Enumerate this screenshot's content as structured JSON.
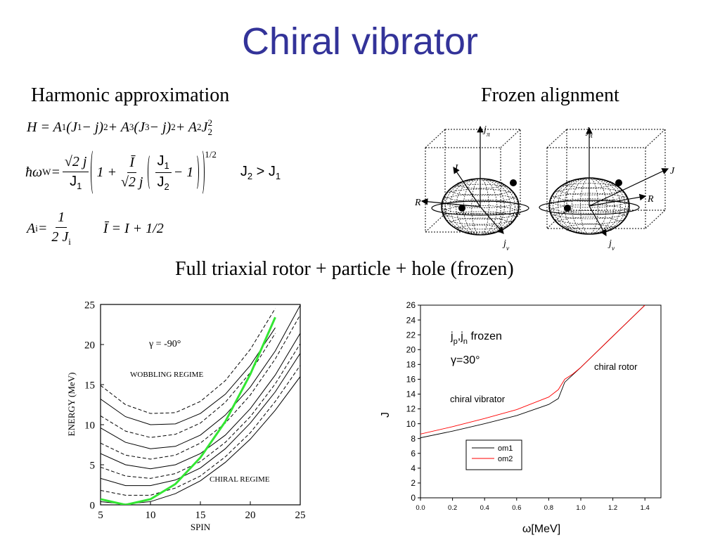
{
  "slide": {
    "title": "Chiral vibrator",
    "left_heading": "Harmonic approximation",
    "right_heading": "Frozen alignment",
    "subheading": "Full triaxial rotor + particle + hole (frozen)",
    "equations": [
      [
        "H = A",
        "1",
        "(J",
        "1",
        " − j)",
        "2",
        " + A",
        "3",
        "(J",
        "3",
        " − j)",
        "2",
        " + A",
        "2",
        "J",
        "2",
        "2"
      ],
      [
        "ħω",
        "W",
        " = ",
        "√2 j",
        "J",
        "1",
        "1 + ",
        "Ī",
        "√2 j",
        "J",
        "1",
        "J",
        "2",
        " − 1",
        "1/2",
        "J",
        "2",
        " > J",
        "1"
      ],
      [
        "A",
        "i",
        " = ",
        "1",
        "2 J",
        "i",
        "Ī = I + 1/2"
      ]
    ],
    "figure_labels": [
      {
        "j_pi": [
          "j",
          "π"
        ],
        "J": "J",
        "R": "R",
        "j_nu": [
          "j",
          "ν"
        ]
      },
      {
        "j_pi": [
          "j",
          "π"
        ],
        "J": "J",
        "R": "R",
        "j_nu": [
          "j",
          "ν"
        ]
      }
    ]
  },
  "chart_data": [
    {
      "type": "line",
      "xlabel": "SPIN",
      "ylabel": "ENERGY (MeV)",
      "annotations": [
        "γ = -90°",
        "WOBBLING REGIME",
        "CHIRAL REGIME"
      ],
      "x": [
        5,
        7.5,
        10,
        12.5,
        15,
        17.5,
        20,
        22.5,
        25
      ],
      "xlim": [
        5,
        25
      ],
      "xticks": [
        5,
        10,
        15,
        20,
        25
      ],
      "ylim": [
        0,
        25
      ],
      "yticks": [
        0,
        5,
        10,
        15,
        20,
        25
      ],
      "series": [
        {
          "color": "#000000",
          "dashed": true,
          "values": [
            14.9,
            12.5,
            11.4,
            11.5,
            12.9,
            15.5,
            19.4,
            24.5,
            null
          ]
        },
        {
          "color": "#000000",
          "dashed": false,
          "values": [
            13.2,
            11.0,
            10.0,
            10.1,
            11.4,
            13.8,
            17.4,
            22.1,
            null
          ]
        },
        {
          "color": "#000000",
          "dashed": true,
          "values": [
            11.1,
            9.2,
            8.4,
            8.8,
            10.2,
            12.8,
            16.5,
            21.4,
            null
          ]
        },
        {
          "color": "#000000",
          "dashed": false,
          "values": [
            9.6,
            7.8,
            7.0,
            7.3,
            8.7,
            11.2,
            14.7,
            19.2,
            24.9
          ]
        },
        {
          "color": "#000000",
          "dashed": true,
          "values": [
            7.7,
            6.2,
            5.7,
            6.2,
            7.7,
            10.2,
            13.7,
            18.2,
            23.7
          ]
        },
        {
          "color": "#000000",
          "dashed": false,
          "values": [
            6.4,
            5.0,
            4.5,
            5.0,
            6.4,
            8.7,
            12.0,
            16.2,
            21.4
          ]
        },
        {
          "color": "#000000",
          "dashed": true,
          "values": [
            4.7,
            3.6,
            3.3,
            3.9,
            5.4,
            7.8,
            11.0,
            15.1,
            20.1
          ]
        },
        {
          "color": "#000000",
          "dashed": false,
          "values": [
            3.3,
            2.4,
            2.4,
            3.1,
            4.6,
            7.0,
            10.2,
            14.1,
            18.9
          ]
        },
        {
          "color": "#000000",
          "dashed": true,
          "values": [
            1.8,
            1.2,
            1.2,
            2.1,
            3.6,
            6.0,
            9.0,
            12.9,
            17.4
          ]
        },
        {
          "color": "#000000",
          "dashed": false,
          "values": [
            0.4,
            0.1,
            0.4,
            1.4,
            3.0,
            5.3,
            8.2,
            11.8,
            16.0
          ]
        },
        {
          "color": "#33e633",
          "dashed": false,
          "values": [
            0.7,
            0,
            0.7,
            2.6,
            5.9,
            10.4,
            16.3,
            23.4,
            null
          ]
        }
      ]
    },
    {
      "type": "line",
      "xlabel": "ω[MeV]",
      "ylabel": "J",
      "annotations": [
        [
          "j",
          "p",
          ",j",
          "n",
          " frozen"
        ],
        "γ=30°",
        "chiral rotor",
        "chiral vibrator"
      ],
      "x": [
        0,
        0.2,
        0.4,
        0.6,
        0.8,
        0.86,
        0.9,
        0.95,
        1.0,
        1.2,
        1.4
      ],
      "xlim": [
        0,
        1.5
      ],
      "xticks": [
        {
          "value": 0,
          "label": "0.0"
        },
        0.2,
        0.4,
        0.6,
        0.8,
        {
          "value": 1,
          "label": "1.0"
        },
        1.2,
        1.4
      ],
      "ylim": [
        0,
        26
      ],
      "yticks": [
        0,
        2,
        4,
        6,
        8,
        10,
        12,
        14,
        16,
        18,
        20,
        22,
        24,
        26
      ],
      "legend": "lower left",
      "series": [
        {
          "name": "om1",
          "color": "#000000",
          "values": [
            8.1,
            9.0,
            10.0,
            11.1,
            12.6,
            13.4,
            15.6,
            16.6,
            17.6,
            21.8,
            26
          ]
        },
        {
          "name": "om2",
          "color": "#ff0000",
          "values": [
            8.6,
            9.6,
            10.7,
            11.9,
            13.6,
            14.6,
            16.0,
            16.7,
            17.6,
            21.8,
            26
          ]
        }
      ]
    }
  ]
}
